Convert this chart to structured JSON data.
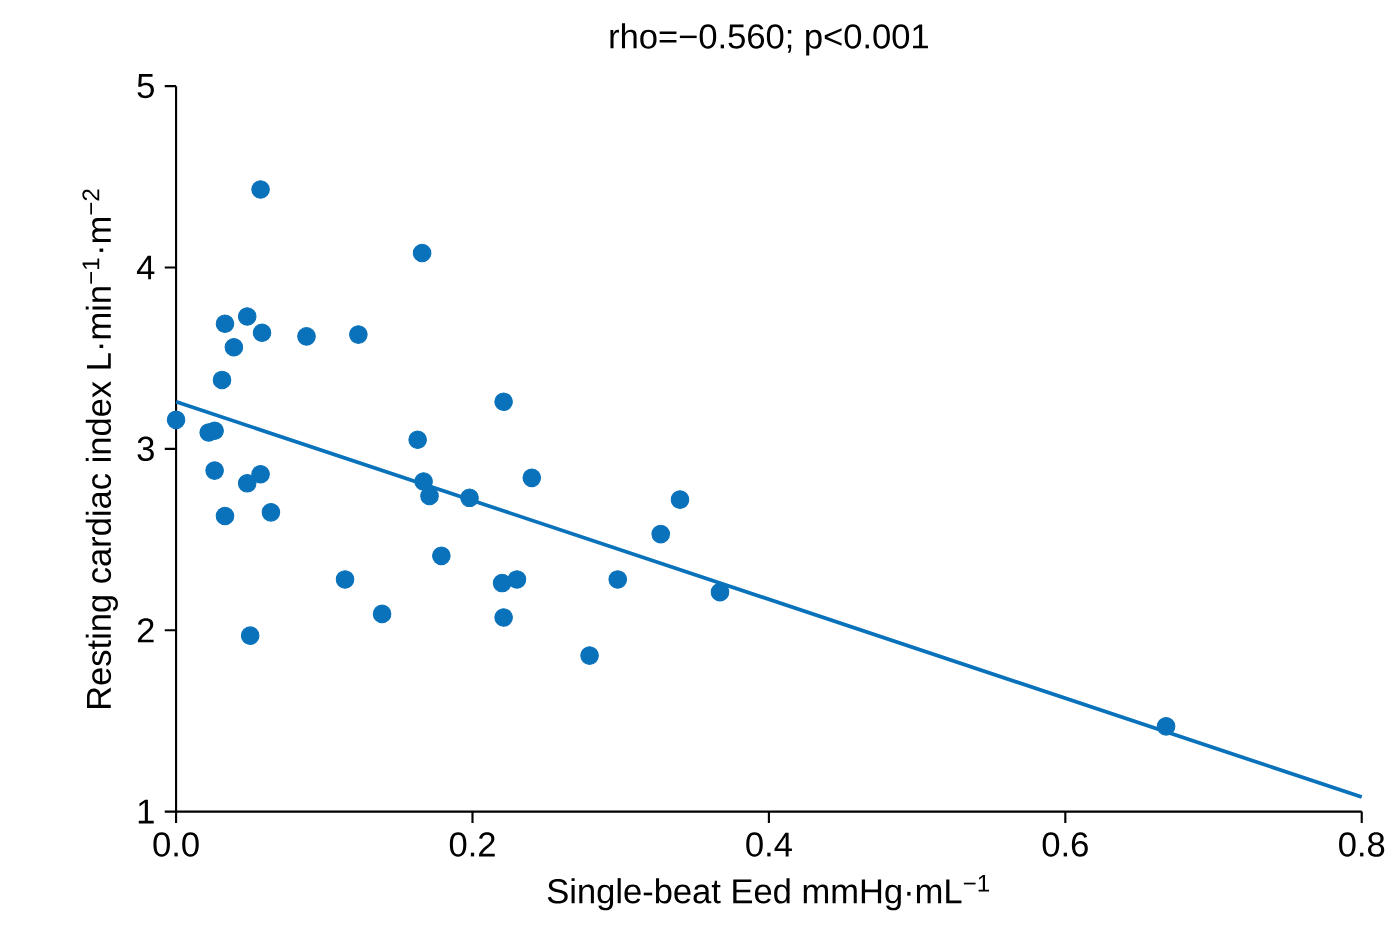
{
  "chart_data": {
    "type": "scatter",
    "title": "rho=−0.560; p<0.001",
    "xlabel": "Single-beat Eed mmHg·mL$^{−1}$",
    "ylabel": "Resting cardiac index L·min$^{−1}$·m$^{−2}$",
    "xlim": [
      0,
      0.8
    ],
    "ylim": [
      1,
      5
    ],
    "xticks": [
      {
        "value": 0,
        "label": "0.0"
      },
      0.2,
      0.4,
      0.6,
      0.8
    ],
    "yticks": [
      1,
      2,
      3,
      4,
      5
    ],
    "grid": false,
    "marker": "circle",
    "series": [
      {
        "color": "#0a72ba",
        "x": [
          0.0,
          0.022,
          0.026,
          0.026,
          0.033,
          0.031,
          0.033,
          0.039,
          0.048,
          0.048,
          0.05,
          0.057,
          0.057,
          0.058,
          0.064,
          0.088,
          0.114,
          0.123,
          0.139,
          0.163,
          0.166,
          0.167,
          0.171,
          0.179,
          0.198,
          0.221,
          0.22,
          0.23,
          0.221,
          0.24,
          0.279,
          0.298,
          0.327,
          0.34,
          0.367,
          0.668
        ],
        "values": [
          3.16,
          3.09,
          3.1,
          2.88,
          3.69,
          3.38,
          2.63,
          3.56,
          3.73,
          2.81,
          1.97,
          4.43,
          2.86,
          3.64,
          2.65,
          3.62,
          2.28,
          3.63,
          2.09,
          3.05,
          4.08,
          2.82,
          2.74,
          2.41,
          2.73,
          3.26,
          2.26,
          2.28,
          2.07,
          2.84,
          1.86,
          2.28,
          2.53,
          2.72,
          2.21,
          1.47
        ]
      },
      {
        "type": "line",
        "color": "#0a72ba",
        "line_style": "solid",
        "marker": "none",
        "x": [
          0,
          0.8
        ],
        "values": [
          3.26,
          1.08
        ]
      }
    ]
  }
}
